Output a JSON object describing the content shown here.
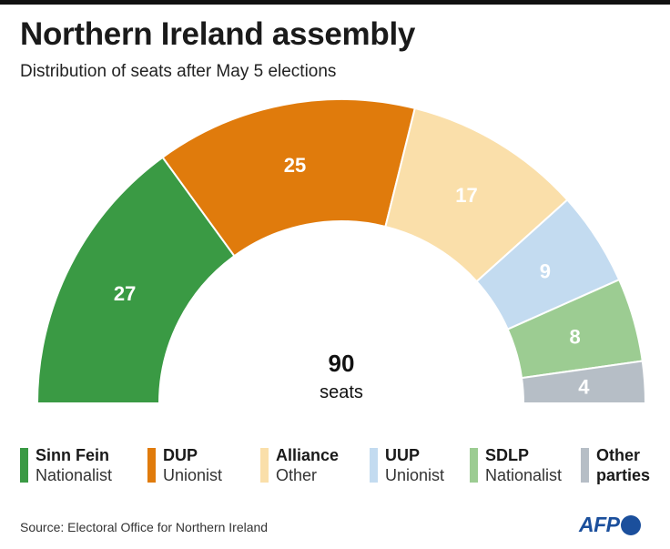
{
  "header": {
    "title": "Northern Ireland assembly",
    "subtitle": "Distribution of seats after May 5 elections"
  },
  "chart_data": {
    "type": "pie",
    "variant": "semicircle",
    "title": "Northern Ireland assembly",
    "subtitle": "Distribution of seats after May 5 elections",
    "total": "90",
    "total_unit": "seats",
    "series": [
      {
        "name": "Sinn Fein",
        "bloc": "Nationalist",
        "value": 27,
        "color": "#3a9a44"
      },
      {
        "name": "DUP",
        "bloc": "Unionist",
        "value": 25,
        "color": "#e07b0c"
      },
      {
        "name": "Alliance",
        "bloc": "Other",
        "value": 17,
        "color": "#fadfaa"
      },
      {
        "name": "UUP",
        "bloc": "Unionist",
        "value": 9,
        "color": "#c3dbf0"
      },
      {
        "name": "SDLP",
        "bloc": "Nationalist",
        "value": 8,
        "color": "#9ccc92"
      },
      {
        "name": "Other parties",
        "bloc": "",
        "value": 4,
        "color": "#b6bec6"
      }
    ],
    "legend_position": "bottom"
  },
  "legend": [
    {
      "name": "Sinn Fein",
      "bloc": "Nationalist"
    },
    {
      "name": "DUP",
      "bloc": "Unionist"
    },
    {
      "name": "Alliance",
      "bloc": "Other"
    },
    {
      "name": "UUP",
      "bloc": "Unionist"
    },
    {
      "name": "SDLP",
      "bloc": "Nationalist"
    },
    {
      "name": "Other\nparties",
      "bloc": ""
    }
  ],
  "footer": {
    "source": "Source: Electoral Office for Northern Ireland",
    "logo_text": "AFP"
  }
}
